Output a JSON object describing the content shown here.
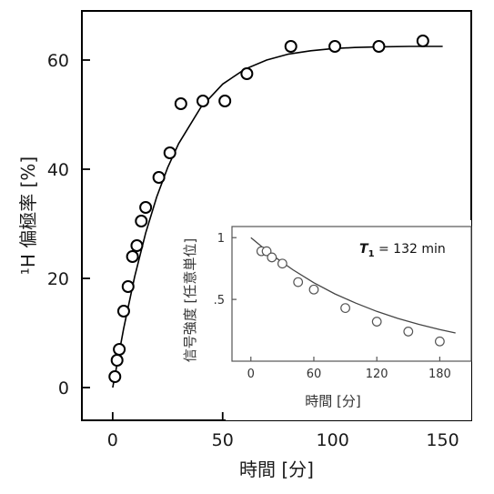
{
  "colors": {
    "axis": "#000000",
    "curve": "#000000",
    "marker_fill": "#ffffff",
    "marker_stroke": "#000000",
    "inset_axis": "#555555",
    "inset_curve": "#444444",
    "inset_marker_stroke": "#555555"
  },
  "chart_data": [
    {
      "type": "scatter",
      "title": "",
      "xlabel": "時間 [分]",
      "ylabel": "¹H 偏極率 [%]",
      "xlim": [
        -14,
        163
      ],
      "ylim": [
        -6,
        69
      ],
      "xticks": [
        0,
        50,
        100,
        150
      ],
      "yticks": [
        0,
        20,
        40,
        60
      ],
      "xtick_labels": [
        "0",
        "50",
        "100",
        "150"
      ],
      "ytick_labels": [
        "0",
        "20",
        "40",
        "60"
      ],
      "grid": false,
      "series": [
        {
          "marker": "open-circle",
          "points": [
            [
              1,
              2
            ],
            [
              2,
              5
            ],
            [
              3,
              7
            ],
            [
              5,
              14
            ],
            [
              7,
              18.5
            ],
            [
              9,
              24
            ],
            [
              11,
              26
            ],
            [
              13,
              30.5
            ],
            [
              15,
              33
            ],
            [
              21,
              38.5
            ],
            [
              26,
              43
            ],
            [
              31,
              52
            ],
            [
              41,
              52.5
            ],
            [
              51,
              52.5
            ],
            [
              61,
              57.5
            ],
            [
              81,
              62.5
            ],
            [
              101,
              62.5
            ],
            [
              121,
              62.5
            ],
            [
              141,
              63.5
            ]
          ]
        }
      ],
      "fit_curve": [
        [
          0,
          0
        ],
        [
          5,
          10.8
        ],
        [
          10,
          20.3
        ],
        [
          15,
          28.3
        ],
        [
          20,
          34.9
        ],
        [
          25,
          40.3
        ],
        [
          30,
          44.7
        ],
        [
          40,
          51.3
        ],
        [
          50,
          55.6
        ],
        [
          60,
          58.3
        ],
        [
          70,
          60
        ],
        [
          80,
          61.1
        ],
        [
          90,
          61.7
        ],
        [
          100,
          62.1
        ],
        [
          110,
          62.3
        ],
        [
          120,
          62.4
        ],
        [
          135,
          62.5
        ],
        [
          150,
          62.5
        ]
      ]
    },
    {
      "type": "scatter",
      "title": "",
      "xlabel": "時間 [分]",
      "ylabel": "信号強度 [任意単位]",
      "xlim": [
        -18,
        210
      ],
      "ylim": [
        0,
        1.09
      ],
      "xticks": [
        0,
        60,
        120,
        180
      ],
      "yticks": [
        0.5,
        1
      ],
      "xtick_labels": [
        "0",
        "60",
        "120",
        "180"
      ],
      "ytick_labels": [
        ".5",
        "1"
      ],
      "grid": false,
      "annotation": {
        "symbol": "T",
        "subscript": "1",
        "text": " = 132 min"
      },
      "series": [
        {
          "marker": "open-circle",
          "points": [
            [
              10,
              0.89
            ],
            [
              15,
              0.89
            ],
            [
              20,
              0.84
            ],
            [
              30,
              0.79
            ],
            [
              45,
              0.64
            ],
            [
              60,
              0.58
            ],
            [
              90,
              0.43
            ],
            [
              120,
              0.32
            ],
            [
              150,
              0.24
            ],
            [
              180,
              0.16
            ]
          ]
        }
      ],
      "fit_curve": [
        [
          0,
          1
        ],
        [
          20,
          0.86
        ],
        [
          40,
          0.74
        ],
        [
          60,
          0.635
        ],
        [
          80,
          0.545
        ],
        [
          100,
          0.47
        ],
        [
          120,
          0.403
        ],
        [
          140,
          0.346
        ],
        [
          160,
          0.298
        ],
        [
          180,
          0.256
        ],
        [
          195,
          0.228
        ]
      ]
    }
  ]
}
